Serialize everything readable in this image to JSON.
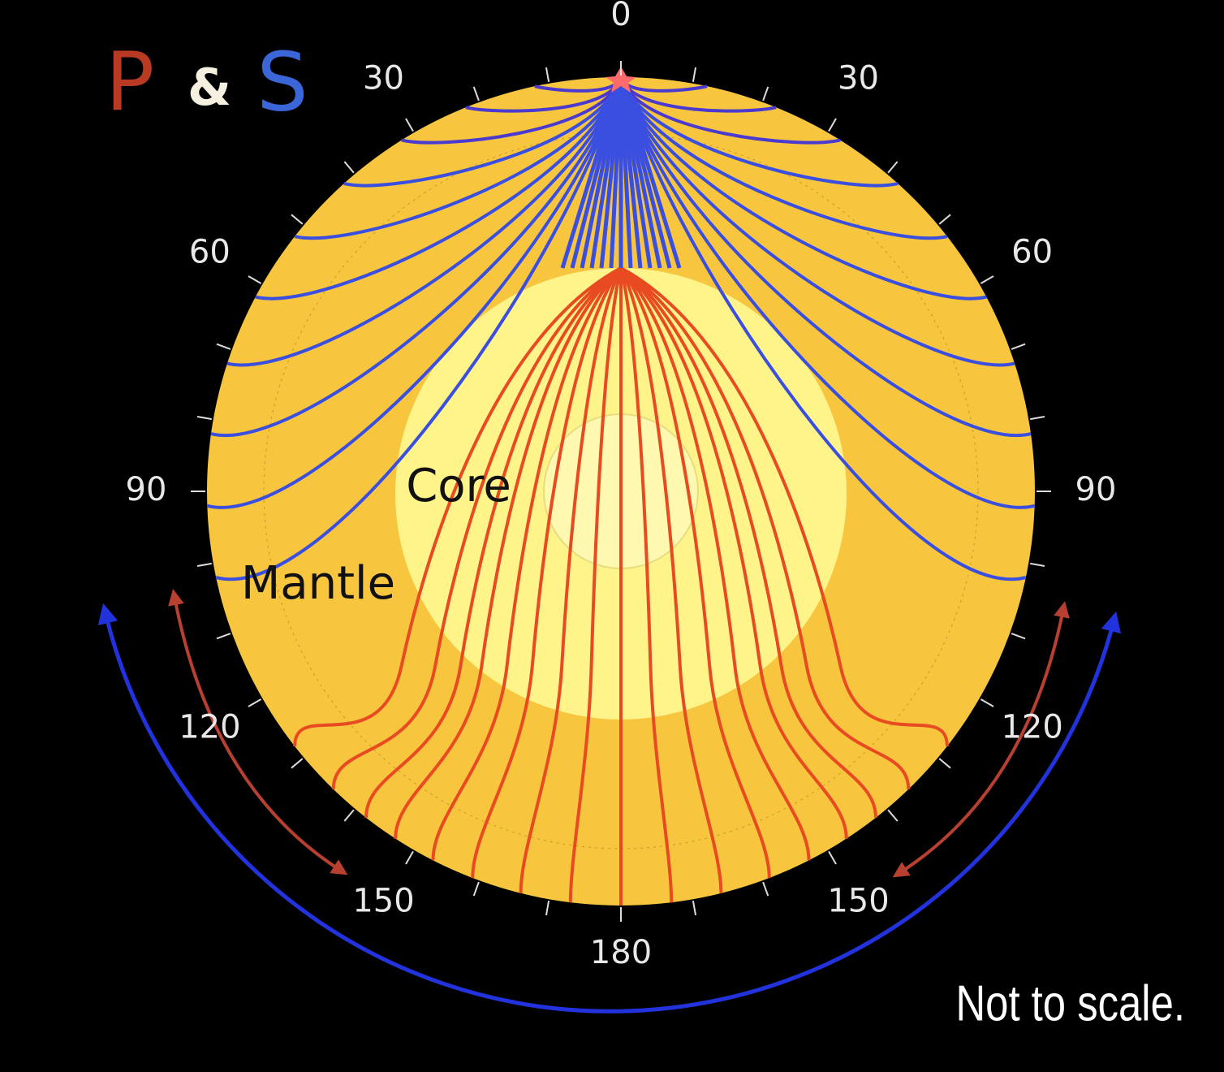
{
  "title": {
    "p": "P",
    "and": "&",
    "s": "S"
  },
  "distance_labels": {
    "top": 0,
    "left": [
      30,
      60,
      90,
      120,
      150
    ],
    "right": [
      30,
      60,
      90,
      120,
      150
    ],
    "bottom": 180
  },
  "core_label": "Core",
  "mantle_label": "Mantle",
  "note": "Not to scale."
}
